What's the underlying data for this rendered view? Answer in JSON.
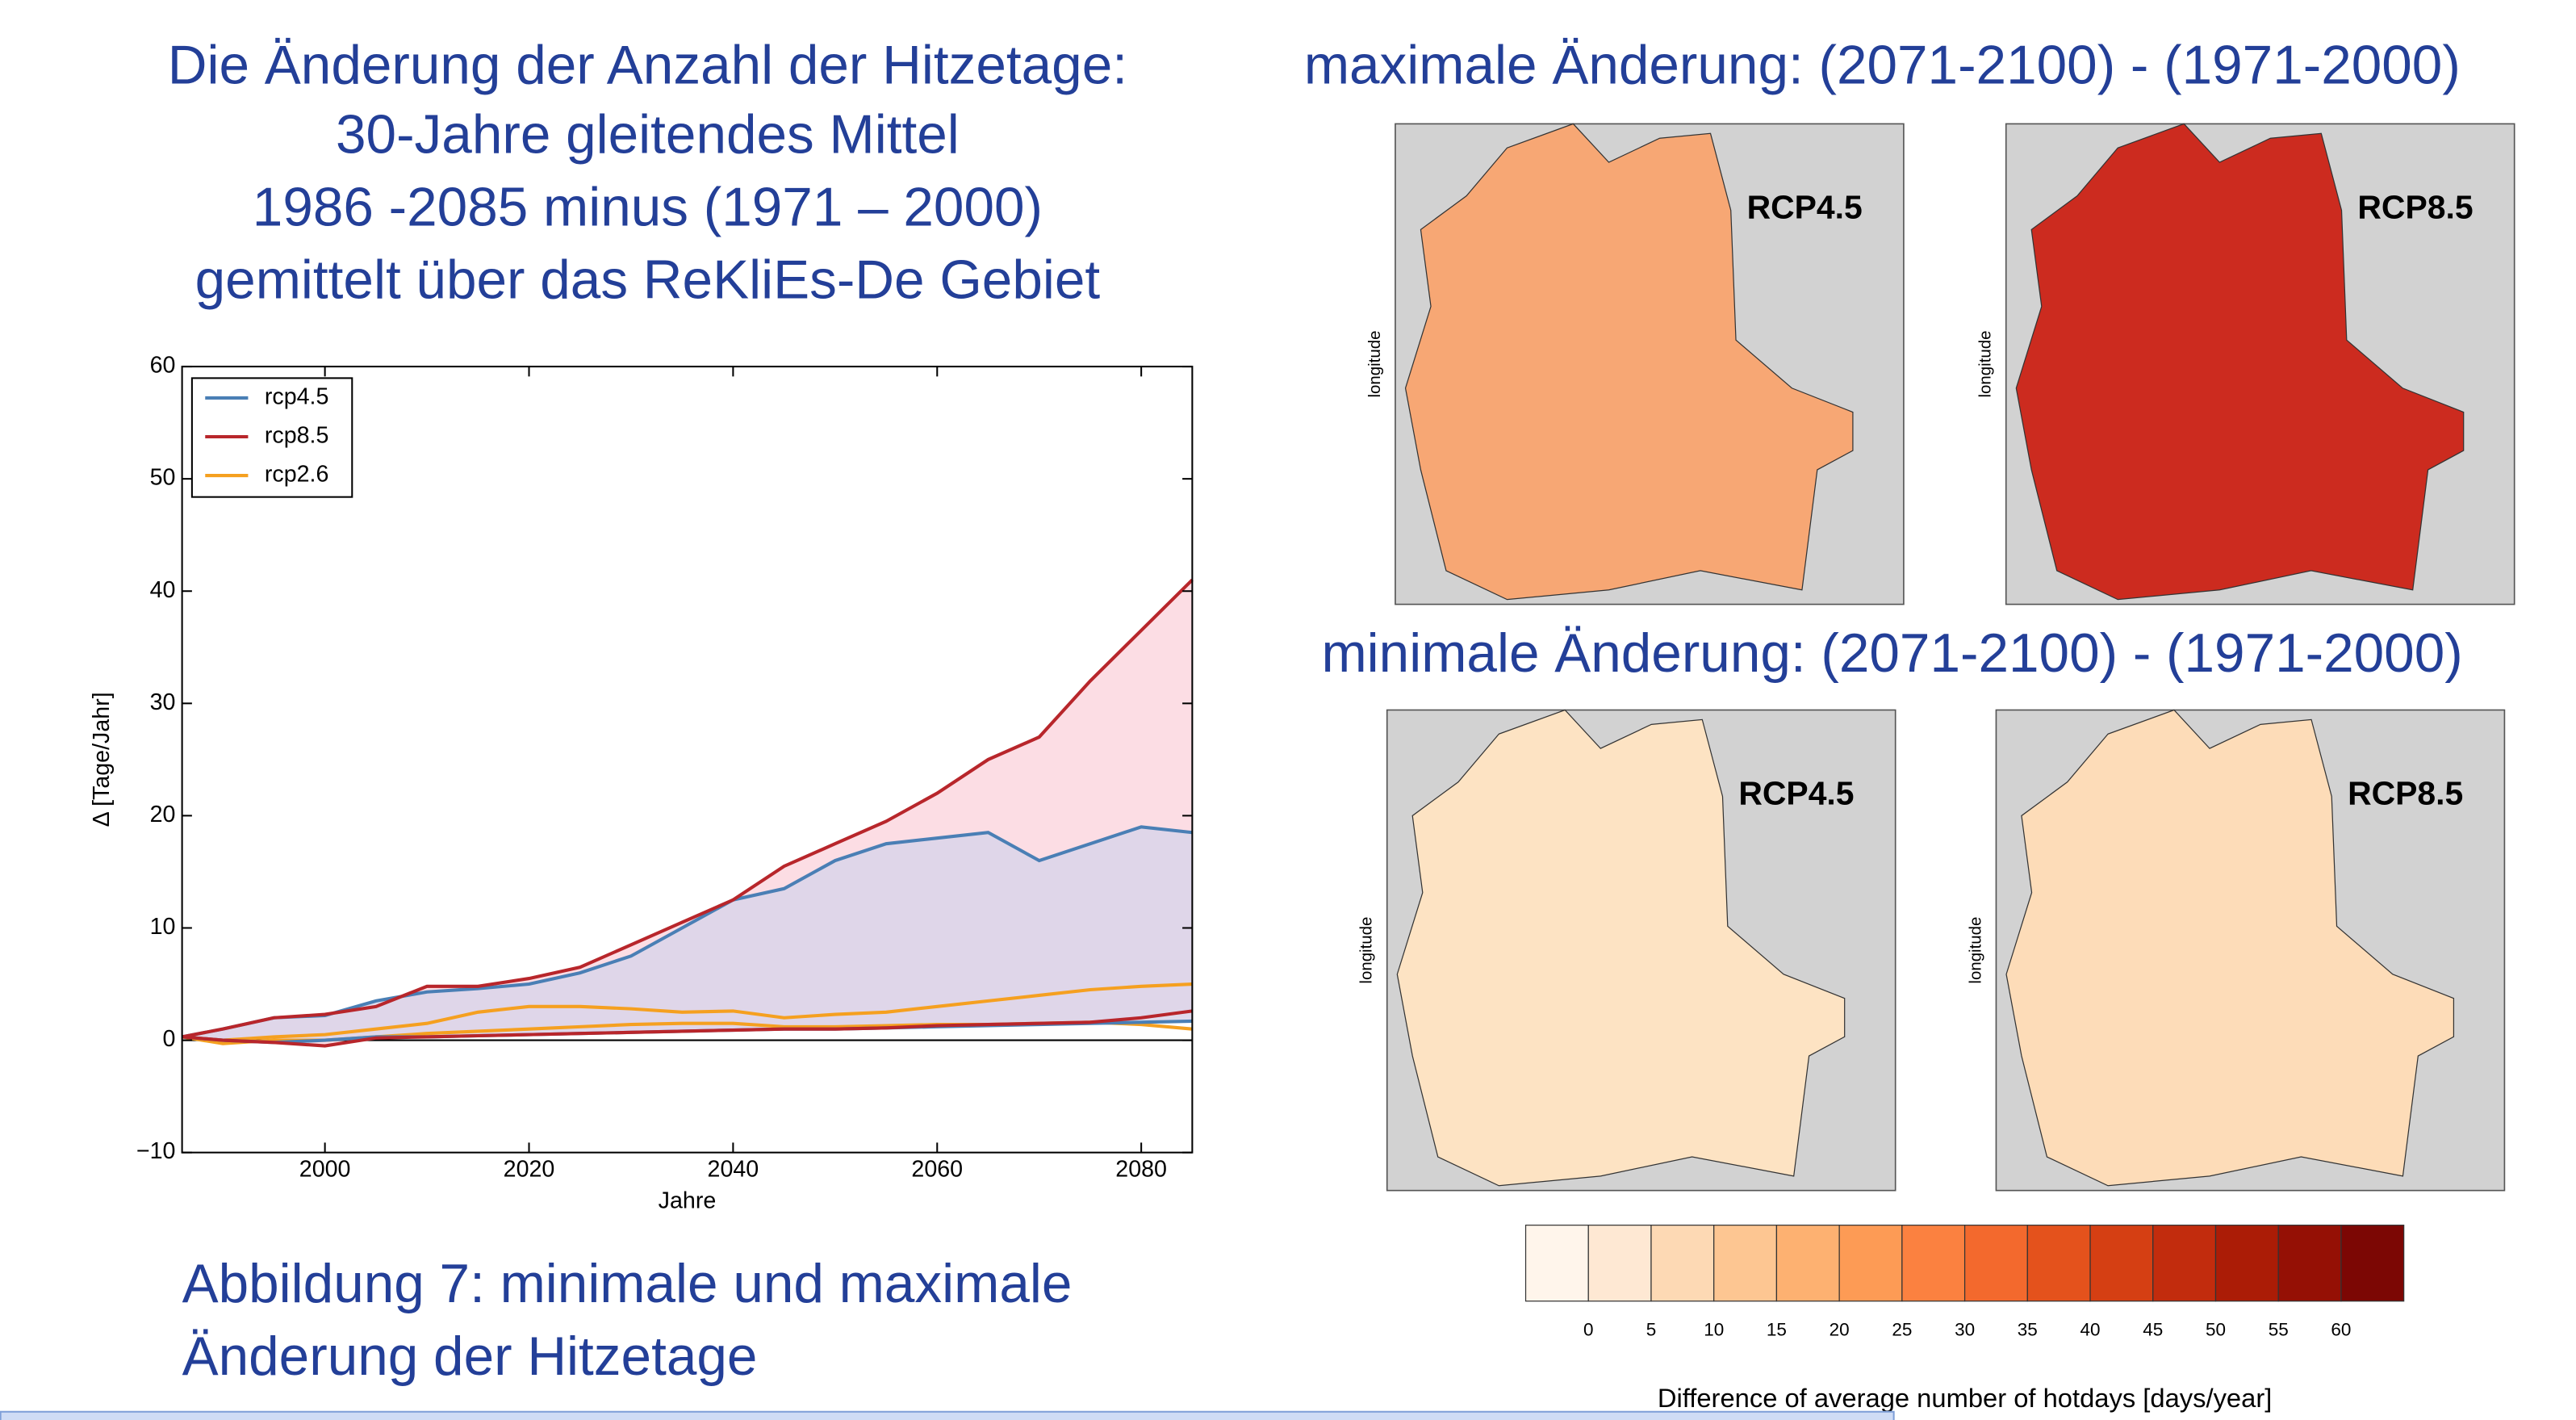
{
  "slide": {
    "left_title": [
      "Die Änderung der Anzahl der Hitzetage:",
      "30-Jahre gleitendes Mittel",
      "1986 -2085 minus (1971 – 2000)",
      "gemittelt über das ReKliEs-De Gebiet"
    ],
    "caption": [
      "Abbildung 7: minimale und maximale",
      "Änderung der Hitzetage"
    ]
  },
  "chart_data": {
    "type": "line",
    "x_label": "Jahre",
    "y_label": "Δ [Tage/Jahr]",
    "x": [
      1986,
      1990,
      1995,
      2000,
      2005,
      2010,
      2015,
      2020,
      2025,
      2030,
      2035,
      2040,
      2045,
      2050,
      2055,
      2060,
      2065,
      2070,
      2075,
      2080,
      2085
    ],
    "series": [
      {
        "name": "rcp4.5",
        "color": "#4a7fb5",
        "fill": "#d9d5ea",
        "max": [
          0.3,
          1,
          2,
          2.2,
          3.5,
          4.3,
          4.6,
          5,
          6,
          7.5,
          10,
          12.5,
          13.5,
          16,
          17.5,
          18,
          18.5,
          16,
          17.5,
          19,
          18.5
        ],
        "min": [
          0.3,
          0,
          -0.2,
          0,
          0.3,
          0.3,
          0.4,
          0.5,
          0.6,
          0.7,
          0.8,
          0.9,
          1,
          1,
          1.1,
          1.2,
          1.3,
          1.4,
          1.5,
          1.6,
          1.7
        ]
      },
      {
        "name": "rcp8.5",
        "color": "#b8262b",
        "fill": "#fbd7df",
        "max": [
          0.3,
          1,
          2,
          2.3,
          3,
          4.8,
          4.8,
          5.5,
          6.5,
          8.5,
          10.5,
          12.5,
          15.5,
          17.5,
          19.5,
          22,
          25,
          27,
          32,
          36.5,
          41
        ],
        "min": [
          0.3,
          0,
          -0.2,
          -0.5,
          0.2,
          0.3,
          0.4,
          0.5,
          0.6,
          0.7,
          0.8,
          0.9,
          1,
          1,
          1.1,
          1.3,
          1.4,
          1.5,
          1.6,
          2,
          2.6
        ]
      },
      {
        "name": "rcp2.6",
        "color": "#f5a020",
        "max": [
          0.3,
          0,
          0.3,
          0.5,
          1,
          1.5,
          2.5,
          3,
          3,
          2.8,
          2.5,
          2.6,
          2,
          2.3,
          2.5,
          3,
          3.5,
          4,
          4.5,
          4.8,
          5
        ],
        "min": [
          0.3,
          -0.3,
          0,
          0,
          0.3,
          0.6,
          0.8,
          1,
          1.2,
          1.4,
          1.5,
          1.5,
          1.2,
          1.2,
          1.3,
          1.4,
          1.4,
          1.5,
          1.6,
          1.4,
          1
        ]
      }
    ],
    "xlim": [
      1986,
      2085
    ],
    "ylim": [
      -10,
      60
    ],
    "xticks": [
      2000,
      2020,
      2040,
      2060,
      2080
    ],
    "yticks": [
      {
        "value": -10,
        "label": "−10"
      },
      0,
      10,
      20,
      30,
      40,
      50,
      60
    ],
    "legend": "upper left",
    "grid": false
  },
  "maps": {
    "max_title": "maximale Änderung: (2071-2100) - (1971-2000)",
    "min_title": "minimale Änderung: (2071-2100) - (1971-2000)",
    "panels": [
      {
        "label": "RCP4.5",
        "axis_label": "longitude",
        "color": "#f7a774"
      },
      {
        "label": "RCP8.5",
        "axis_label": "longitude",
        "color": "#cc2b1f"
      },
      {
        "label": "RCP4.5",
        "axis_label": "longitude",
        "color": "#fde3c3"
      },
      {
        "label": "RCP8.5",
        "axis_label": "longitude",
        "color": "#fddcb8"
      }
    ]
  },
  "colorbar": {
    "colors": [
      "#fff5eb",
      "#fee8d3",
      "#fdd9b4",
      "#fdc692",
      "#fdb171",
      "#fd9b55",
      "#fb8140",
      "#f3692d",
      "#e4521c",
      "#d53f13",
      "#c22c0d",
      "#ab1c06",
      "#951005",
      "#7c0704"
    ],
    "lim": [
      -5,
      65
    ],
    "ticks": [
      0,
      5,
      10,
      15,
      20,
      25,
      30,
      35,
      40,
      45,
      50,
      55,
      60
    ],
    "label": "Difference of average number of hotdays [days/year]"
  }
}
